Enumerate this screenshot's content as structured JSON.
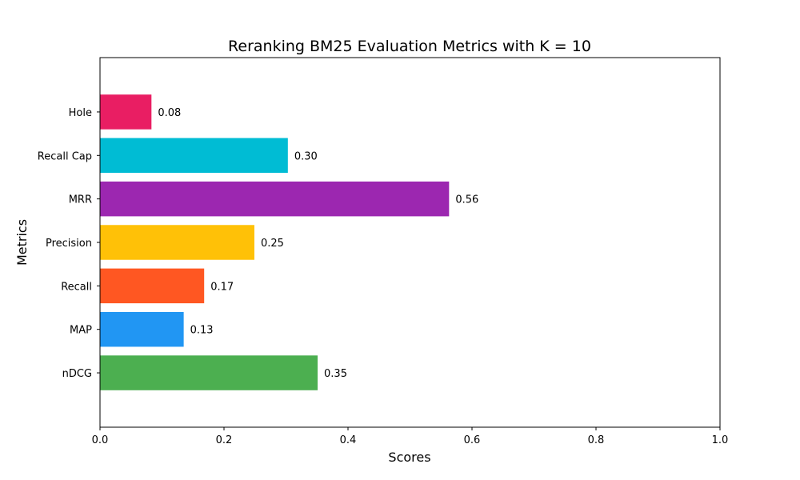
{
  "chart_data": {
    "type": "bar",
    "orientation": "horizontal",
    "title": "Reranking BM25 Evaluation Metrics with K = 10",
    "xlabel": "Scores",
    "ylabel": "Metrics",
    "xlim": [
      0,
      1
    ],
    "x_ticks": [
      "0.0",
      "0.2",
      "0.4",
      "0.6",
      "0.8",
      "1.0"
    ],
    "categories": [
      "nDCG",
      "MAP",
      "Recall",
      "Precision",
      "MRR",
      "Recall Cap",
      "Hole"
    ],
    "values": [
      0.351,
      0.135,
      0.168,
      0.249,
      0.563,
      0.303,
      0.083
    ],
    "value_labels": [
      "0.35",
      "0.13",
      "0.17",
      "0.25",
      "0.56",
      "0.30",
      "0.08"
    ],
    "colors": [
      "#4caf50",
      "#2196f3",
      "#ff5722",
      "#ffc107",
      "#9c27b0",
      "#00bcd4",
      "#e91e63"
    ],
    "grid": false,
    "legend": "none"
  }
}
